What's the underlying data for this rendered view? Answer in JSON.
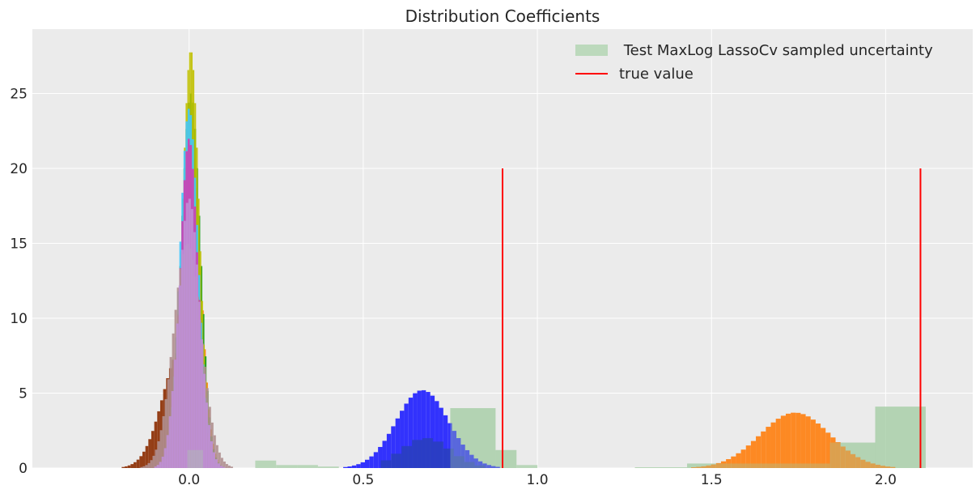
{
  "chart_data": {
    "type": "histogram",
    "title": "Distribution Coefficients",
    "xlabel": "",
    "ylabel": "",
    "xlim": [
      -0.45,
      2.25
    ],
    "ylim": [
      0,
      29.3
    ],
    "x_ticks": [
      0.0,
      0.5,
      1.0,
      1.5,
      2.0
    ],
    "x_tick_labels": [
      "0.0",
      "0.5",
      "1.0",
      "1.5",
      "2.0"
    ],
    "y_ticks": [
      0,
      5,
      10,
      15,
      20,
      25
    ],
    "y_tick_labels": [
      "0",
      "5",
      "10",
      "15",
      "20",
      "25"
    ],
    "grid": true,
    "legend_position": "top-right",
    "legend": [
      {
        "label": " Test MaxLog LassoCv sampled uncertainty",
        "kind": "patch",
        "color": "#bcd9bc"
      },
      {
        "label": "true value",
        "kind": "line",
        "color": "#ff0000"
      }
    ],
    "colors": {
      "background": "#ebebeb",
      "grid": "#ffffff",
      "text": "#262626",
      "true_line": "#ff0000",
      "sampled_hist": "#bcd9bc"
    },
    "true_values": {
      "x": [
        0.9,
        2.1
      ],
      "y_top": 20
    },
    "near_zero_peak": {
      "mean": 0.0,
      "peak_height": 27.9
    },
    "sampled_uncertainty": {
      "color": "#a8cfa8",
      "edges": [
        0.19,
        0.25,
        0.31,
        0.37,
        0.43,
        0.75,
        0.88,
        0.94,
        1.0
      ],
      "counts": [
        0.5,
        0.2,
        0.2,
        0.1,
        0.0,
        4.0,
        1.2,
        0.2
      ],
      "extra": [
        {
          "x0": -0.005,
          "x1": 0.04,
          "h": 1.2
        },
        {
          "x0": 1.28,
          "x1": 1.43,
          "h": 0.05
        },
        {
          "x0": 1.43,
          "x1": 1.84,
          "h": 0.3
        },
        {
          "x0": 1.84,
          "x1": 1.97,
          "h": 1.7
        },
        {
          "x0": 1.97,
          "x1": 2.115,
          "h": 4.1
        }
      ]
    },
    "series": [
      {
        "name": "",
        "color": "#1f1fff",
        "mean": 0.67,
        "sd": 0.075,
        "peak": 5.2,
        "lo": 0.38,
        "hi": 0.92,
        "bin": 0.0125
      },
      {
        "name": "",
        "color": "#ff7f0e",
        "mean": 1.74,
        "sd": 0.1,
        "peak": 3.7,
        "lo": 1.37,
        "hi": 2.05,
        "bin": 0.0143
      },
      {
        "name": "",
        "color": "#2a3fbf",
        "mean": 0.68,
        "sd": 0.07,
        "peak": 2.0,
        "lo": 0.55,
        "hi": 0.85,
        "bin": 0.03
      },
      {
        "name": "",
        "color": "#8b2c00",
        "mean": -0.02,
        "sd": 0.055,
        "peak": 8.0,
        "lo": -0.27,
        "hi": 0.05,
        "bin": 0.0085
      },
      {
        "name": "",
        "color": "#ff8000",
        "mean": 0.005,
        "sd": 0.028,
        "peak": 22.0,
        "lo": -0.12,
        "hi": 0.15,
        "bin": 0.006
      },
      {
        "name": "",
        "color": "#1aa01a",
        "mean": 0.005,
        "sd": 0.027,
        "peak": 25.0,
        "lo": -0.1,
        "hi": 0.13,
        "bin": 0.006
      },
      {
        "name": "",
        "color": "#c0c000",
        "mean": 0.005,
        "sd": 0.024,
        "peak": 27.9,
        "lo": -0.08,
        "hi": 0.12,
        "bin": 0.005
      },
      {
        "name": "",
        "color": "#40c8ff",
        "mean": 0.0,
        "sd": 0.026,
        "peak": 24.0,
        "lo": -0.1,
        "hi": 0.12,
        "bin": 0.006
      },
      {
        "name": "",
        "color": "#d23cb4",
        "mean": 0.0,
        "sd": 0.025,
        "peak": 22.0,
        "lo": -0.1,
        "hi": 0.12,
        "bin": 0.006
      },
      {
        "name": "",
        "color": "#b09090",
        "mean": -0.005,
        "sd": 0.04,
        "peak": 15.0,
        "lo": -0.14,
        "hi": 0.12,
        "bin": 0.007
      },
      {
        "name": "",
        "color": "#c090d8",
        "mean": 0.0,
        "sd": 0.03,
        "peak": 18.0,
        "lo": -0.1,
        "hi": 0.12,
        "bin": 0.007
      }
    ]
  }
}
